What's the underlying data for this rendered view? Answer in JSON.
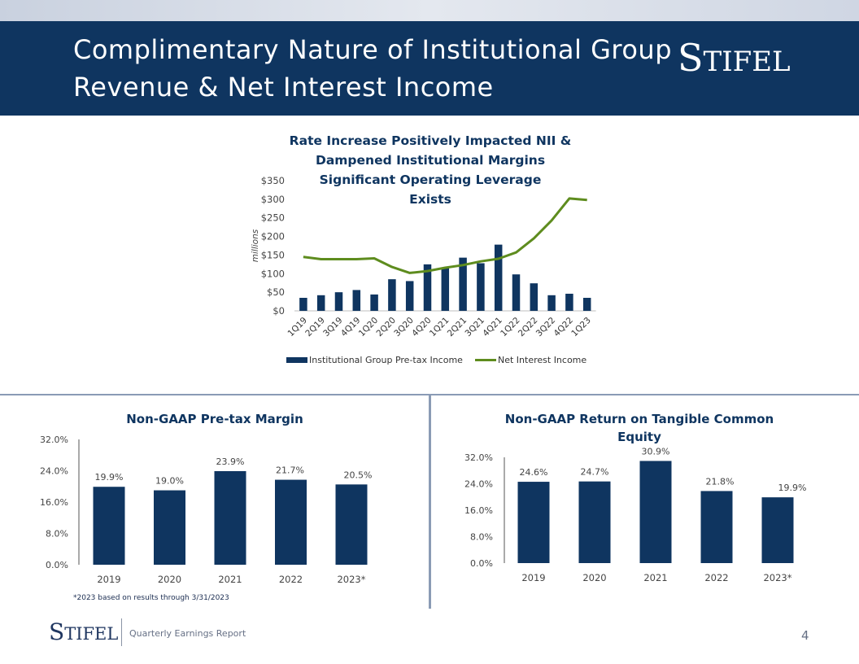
{
  "header": {
    "title_line1": "Complimentary Nature of Institutional Group",
    "title_line2": "Revenue & Net Interest Income",
    "logo_s": "S",
    "logo_rest": "TIFEL"
  },
  "colors": {
    "navy": "#0f3560",
    "green": "#5e8c1e",
    "axis": "#bfbfbf"
  },
  "chart_data": [
    {
      "type": "bar",
      "title_lines": [
        "Rate Increase Positively Impacted NII &",
        "Dampened Institutional Margins",
        "Significant Operating Leverage",
        "Exists"
      ],
      "ylabel": "millions",
      "ylim": [
        0,
        350
      ],
      "yticks": [
        0,
        50,
        100,
        150,
        200,
        250,
        300,
        350
      ],
      "ytick_labels": [
        "$0",
        "$50",
        "$100",
        "$150",
        "$200",
        "$250",
        "$300",
        "$350"
      ],
      "categories": [
        "1Q19",
        "2Q19",
        "3Q19",
        "4Q19",
        "1Q20",
        "2Q20",
        "3Q20",
        "4Q20",
        "1Q21",
        "2Q21",
        "3Q21",
        "4Q21",
        "1Q22",
        "2Q22",
        "3Q22",
        "4Q22",
        "1Q23"
      ],
      "series": [
        {
          "name": "Institutional Group Pre-tax Income",
          "kind": "bar",
          "values": [
            35,
            42,
            50,
            56,
            44,
            85,
            80,
            125,
            115,
            143,
            128,
            178,
            98,
            74,
            42,
            46,
            35
          ]
        },
        {
          "name": "Net Interest Income",
          "kind": "line",
          "values": [
            145,
            139,
            139,
            139,
            141,
            118,
            102,
            107,
            116,
            123,
            133,
            140,
            157,
            195,
            243,
            302,
            298
          ]
        }
      ],
      "legend": {
        "bar_label": "Institutional Group Pre-tax Income",
        "line_label": "Net Interest Income"
      }
    },
    {
      "type": "bar",
      "title": "Non-GAAP Pre-tax Margin",
      "ylim": [
        0,
        32
      ],
      "yticks": [
        0,
        8,
        16,
        24,
        32
      ],
      "ytick_labels": [
        "0.0%",
        "8.0%",
        "16.0%",
        "24.0%",
        "32.0%"
      ],
      "categories": [
        "2019",
        "2020",
        "2021",
        "2022",
        "2023*"
      ],
      "values": [
        19.9,
        19.0,
        23.9,
        21.7,
        20.5
      ],
      "data_labels": [
        "19.9%",
        "19.0%",
        "23.9%",
        "21.7%",
        "20.5%"
      ]
    },
    {
      "type": "bar",
      "title_lines": [
        "Non-GAAP Return on Tangible Common",
        "Equity"
      ],
      "ylim": [
        0,
        32
      ],
      "yticks": [
        0,
        8,
        16,
        24,
        32
      ],
      "ytick_labels": [
        "0.0%",
        "8.0%",
        "16.0%",
        "24.0%",
        "32.0%"
      ],
      "categories": [
        "2019",
        "2020",
        "2021",
        "2022",
        "2023*"
      ],
      "values": [
        24.6,
        24.7,
        30.9,
        21.8,
        19.9
      ],
      "data_labels": [
        "24.6%",
        "24.7%",
        "30.9%",
        "21.8%",
        "19.9%"
      ]
    }
  ],
  "footnote": "*2023 based on results through 3/31/2023",
  "footer": {
    "logo_s": "S",
    "logo_rest": "TIFEL",
    "label": "Quarterly Earnings Report",
    "page": "4"
  }
}
